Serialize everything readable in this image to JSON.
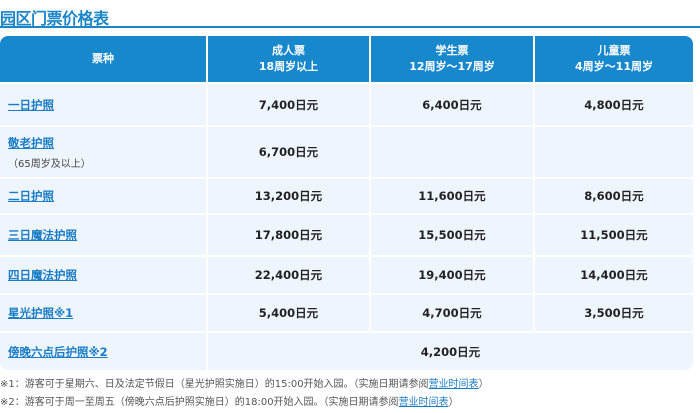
{
  "title": "园区门票价格表",
  "header": {
    "col0": "票种",
    "col1_l1": "成人票",
    "col1_l2": "18周岁以上",
    "col2_l1": "学生票",
    "col2_l2": "12周岁～17周岁",
    "col3_l1": "儿童票",
    "col3_l2": "4周岁～11周岁"
  },
  "rows": [
    {
      "name": "一日护照",
      "adult": "7,400日元",
      "student": "6,400日元",
      "child": "4,800日元"
    },
    {
      "name": "敬老护照",
      "note": "（65周岁及以上）",
      "adult": "6,700日元",
      "student": "",
      "child": ""
    },
    {
      "name": "二日护照",
      "adult": "13,200日元",
      "student": "11,600日元",
      "child": "8,600日元"
    },
    {
      "name": "三日魔法护照",
      "adult": "17,800日元",
      "student": "15,500日元",
      "child": "11,500日元"
    },
    {
      "name": "四日魔法护照",
      "adult": "22,400日元",
      "student": "19,400日元",
      "child": "14,400日元"
    },
    {
      "name": "星光护照※1",
      "adult": "5,400日元",
      "student": "4,700日元",
      "child": "3,500日元"
    },
    {
      "name": "傍晚六点后护照※2",
      "all": "4,200日元"
    }
  ],
  "notes": [
    {
      "text": "※1：游客可于星期六、日及法定节假日（星光护照实施日）的15:00开始入园。（实施日期请参阅",
      "link": "营业时间表",
      "end": "）"
    },
    {
      "text": "※2：游客可于周一至周五（傍晚六点后护照实施日）的18:00开始入园。（实施日期请参阅",
      "link": "营业时间表",
      "end": "）"
    }
  ]
}
